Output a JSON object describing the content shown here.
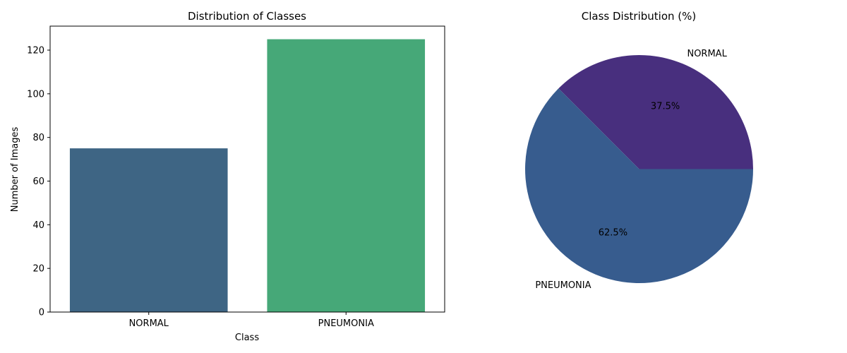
{
  "chart_data": [
    {
      "type": "bar",
      "title": "Distribution of Classes",
      "xlabel": "Class",
      "ylabel": "Number of Images",
      "categories": [
        "NORMAL",
        "PNEUMONIA"
      ],
      "values": [
        75,
        125
      ],
      "colors": [
        "#3e6584",
        "#46a878"
      ],
      "ylim": [
        0,
        131
      ],
      "yticks": [
        0,
        20,
        40,
        60,
        80,
        100,
        120
      ],
      "ytick_labels": [
        "0",
        "20",
        "40",
        "60",
        "80",
        "100",
        "120"
      ],
      "grid": false
    },
    {
      "type": "pie",
      "title": "Class Distribution (%)",
      "labels": [
        "NORMAL",
        "PNEUMONIA"
      ],
      "values": [
        37.5,
        62.5
      ],
      "pct_labels": [
        "37.5%",
        "62.5%"
      ],
      "colors": [
        "#482f7e",
        "#375c8e"
      ]
    }
  ]
}
